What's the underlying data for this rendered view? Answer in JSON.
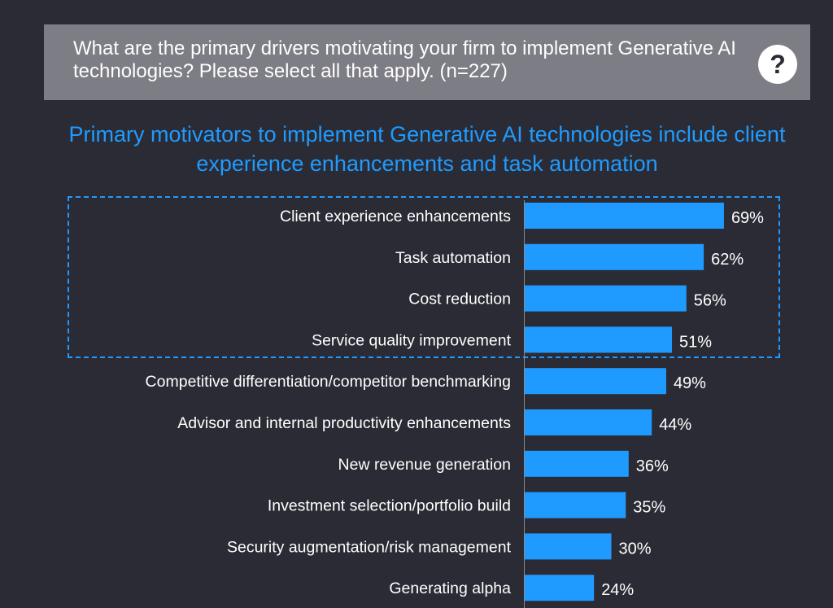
{
  "question": {
    "text": "What are the primary drivers motivating your firm to implement Generative AI technologies? Please select all that apply. (n=227)",
    "help_icon": "question-mark-circle-icon"
  },
  "headline": "Primary motivators to implement Generative AI technologies include client experience enhancements and task automation",
  "colors": {
    "background": "#2b2b35",
    "bar": "#1f9bff",
    "headline": "#1f9bff",
    "question_box": "#7d7d85",
    "highlight_border": "#1f9bff"
  },
  "chart_data": {
    "type": "bar",
    "orientation": "horizontal",
    "categories": [
      "Client experience enhancements",
      "Task automation",
      "Cost reduction",
      "Service quality improvement",
      "Competitive differentiation/competitor benchmarking",
      "Advisor and internal productivity enhancements",
      "New revenue generation",
      "Investment selection/portfolio build",
      "Security augmentation/risk management",
      "Generating alpha"
    ],
    "values": [
      69,
      62,
      56,
      51,
      49,
      44,
      36,
      35,
      30,
      24
    ],
    "value_labels": [
      "69%",
      "62%",
      "56%",
      "51%",
      "49%",
      "44%",
      "36%",
      "35%",
      "30%",
      "24%"
    ],
    "unit": "%",
    "highlighted_categories": [
      0,
      1,
      2,
      3
    ],
    "grid": false,
    "legend": "none"
  }
}
